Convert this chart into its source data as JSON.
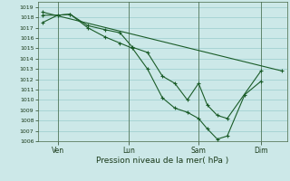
{
  "xlabel": "Pression niveau de la mer( hPa )",
  "bg_color": "#cce8e8",
  "grid_color": "#99cccc",
  "line_color": "#1a5c28",
  "ylim": [
    1006,
    1019.5
  ],
  "yticks": [
    1006,
    1007,
    1008,
    1009,
    1010,
    1011,
    1012,
    1013,
    1014,
    1015,
    1016,
    1017,
    1018,
    1019
  ],
  "xtick_labels": [
    "Ven",
    "Lun",
    "Sam",
    "Dim"
  ],
  "xtick_positions": [
    0.08,
    0.365,
    0.645,
    0.895
  ],
  "lines": [
    {
      "x": [
        0.02,
        0.08,
        0.13,
        0.2,
        0.27,
        0.33,
        0.38,
        0.44,
        0.5,
        0.55,
        0.6,
        0.645,
        0.68,
        0.72,
        0.76,
        0.895
      ],
      "y": [
        1017.5,
        1018.2,
        1018.3,
        1017.2,
        1016.8,
        1016.5,
        1015.1,
        1014.6,
        1012.3,
        1011.6,
        1010.0,
        1011.6,
        1009.5,
        1008.5,
        1008.2,
        1012.8
      ]
    },
    {
      "x": [
        0.02,
        0.08,
        0.13,
        0.2,
        0.27,
        0.33,
        0.38,
        0.44,
        0.5,
        0.55,
        0.6,
        0.645,
        0.68,
        0.72,
        0.76,
        0.83,
        0.895
      ],
      "y": [
        1018.2,
        1018.2,
        1018.3,
        1017.0,
        1016.1,
        1015.5,
        1015.0,
        1013.0,
        1010.2,
        1009.2,
        1008.8,
        1008.2,
        1007.2,
        1006.2,
        1006.5,
        1010.5,
        1011.8
      ]
    },
    {
      "x": [
        0.02,
        0.98
      ],
      "y": [
        1018.5,
        1012.8
      ]
    }
  ]
}
